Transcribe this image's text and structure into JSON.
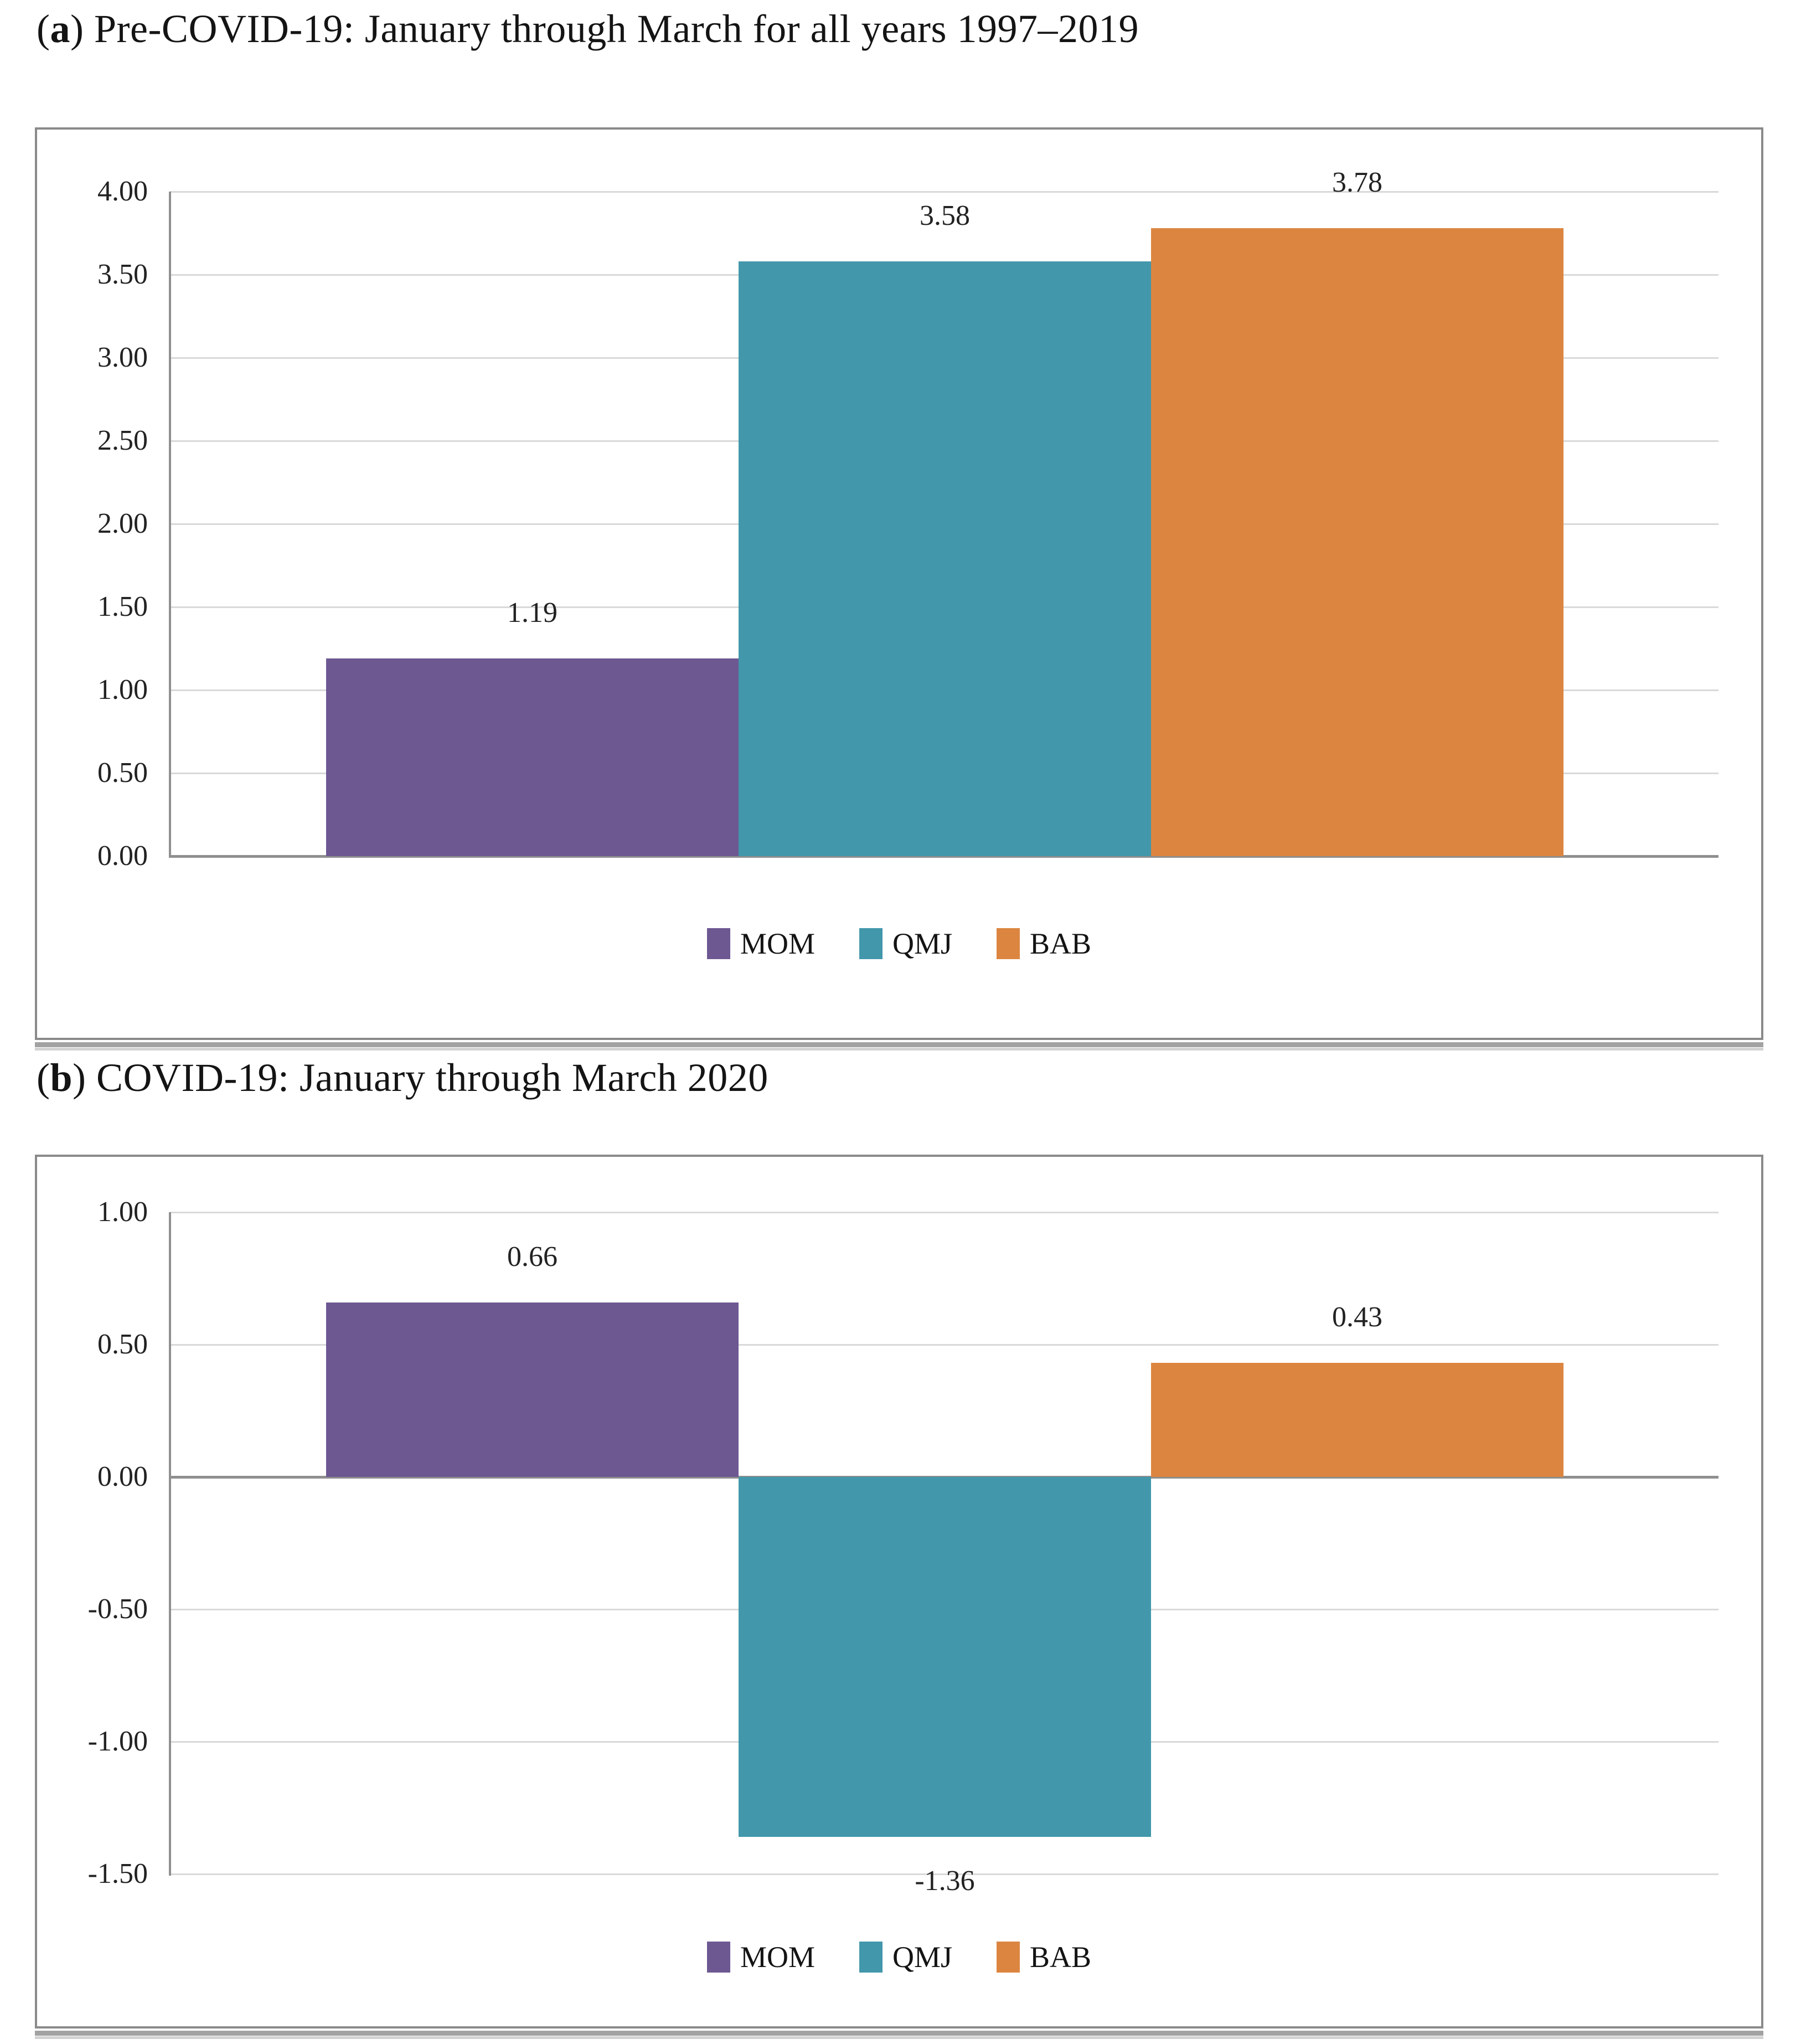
{
  "figure": {
    "panels": [
      {
        "panel_label_open": "(",
        "panel_label_letter": "a",
        "panel_label_close": ") ",
        "title": "Pre-COVID-19: January through March for all years 1997–2019"
      },
      {
        "panel_label_open": "(",
        "panel_label_letter": "b",
        "panel_label_close": ") ",
        "title": "COVID-19: January through March 2020"
      }
    ]
  },
  "colors": {
    "mom": "#6D5892",
    "qmj": "#4297AB",
    "bab": "#DC8540",
    "gridline": "#D9D9D9",
    "axis": "#8F8F8F",
    "frame": "#8A8A8A",
    "text": "#222222"
  },
  "chart_data": [
    {
      "type": "bar",
      "panel": "a",
      "title": "(a) Pre-COVID-19: January through March for all years 1997–2019",
      "categories": [
        "MOM",
        "QMJ",
        "BAB"
      ],
      "values": [
        1.19,
        3.58,
        3.78
      ],
      "data_labels": [
        "1.19",
        "3.58",
        "3.78"
      ],
      "series_color_keys": [
        "mom",
        "qmj",
        "bab"
      ],
      "ylim": [
        0,
        4
      ],
      "ytick_step": 0.5,
      "ytick_labels": [
        "4.00",
        "3.50",
        "3.00",
        "2.50",
        "2.00",
        "1.50",
        "1.00",
        "0.50",
        "0.00"
      ],
      "grid": true,
      "legend": [
        "MOM",
        "QMJ",
        "BAB"
      ],
      "legend_position": "bottom"
    },
    {
      "type": "bar",
      "panel": "b",
      "title": "(b) COVID-19: January through March 2020",
      "categories": [
        "MOM",
        "QMJ",
        "BAB"
      ],
      "values": [
        0.66,
        -1.36,
        0.43
      ],
      "data_labels": [
        "0.66",
        "-1.36",
        "0.43"
      ],
      "series_color_keys": [
        "mom",
        "qmj",
        "bab"
      ],
      "ylim": [
        -1.5,
        1
      ],
      "ytick_step": 0.5,
      "ytick_labels": [
        "1.00",
        "0.50",
        "0.00",
        "-0.50",
        "-1.00",
        "-1.50"
      ],
      "grid": true,
      "legend": [
        "MOM",
        "QMJ",
        "BAB"
      ],
      "legend_position": "bottom"
    }
  ]
}
